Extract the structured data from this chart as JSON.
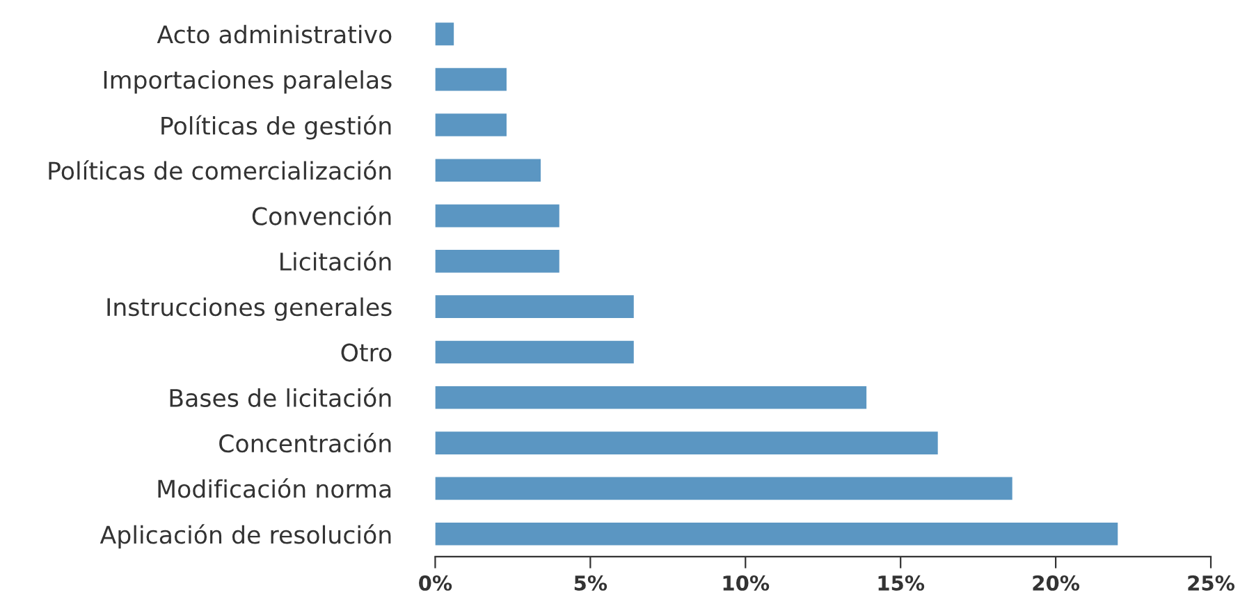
{
  "chart_data": {
    "type": "bar",
    "orientation": "horizontal",
    "categories": [
      "Acto administrativo",
      "Importaciones paralelas",
      "Políticas de gestión",
      "Políticas de comercialización",
      "Convención",
      "Licitación",
      "Instrucciones generales",
      "Otro",
      "Bases de licitación",
      "Concentración",
      "Modificación norma",
      "Aplicación de resolución"
    ],
    "values": [
      0.6,
      2.3,
      2.3,
      3.4,
      4.0,
      4.0,
      6.4,
      6.4,
      13.9,
      16.2,
      18.6,
      22.0
    ],
    "color": "#5b96c2",
    "xlim": [
      0,
      25
    ],
    "xticks": [
      {
        "value": 0,
        "label": "0%"
      },
      {
        "value": 5,
        "label": "5%"
      },
      {
        "value": 10,
        "label": "10%"
      },
      {
        "value": 15,
        "label": "15%"
      },
      {
        "value": 20,
        "label": "20%"
      },
      {
        "value": 25,
        "label": "25%"
      }
    ],
    "grid": false,
    "legend": false
  }
}
